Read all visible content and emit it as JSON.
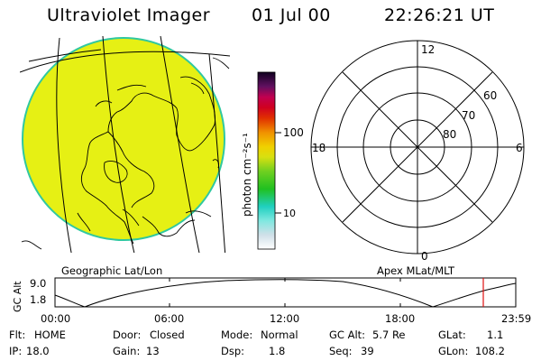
{
  "header": {
    "title": "Ultraviolet Imager",
    "date": "01 Jul 00",
    "time": "22:26:21 UT"
  },
  "colorbar": {
    "unit_label": "photon cm⁻²s⁻¹",
    "tick_100": "100",
    "tick_10": "10"
  },
  "polar": {
    "mlt_top": "12",
    "mlt_left": "18",
    "mlt_right": "6",
    "mlt_bottom": "0",
    "lat_60": "60",
    "lat_70": "70",
    "lat_80": "80"
  },
  "map_labels": {
    "left": "Geographic Lat/Lon",
    "right": "Apex MLat/MLT"
  },
  "altitude_plot": {
    "axis_label": "GC Alt",
    "ymax": "9.0",
    "ymin": "1.8",
    "ticks": [
      "00:00",
      "06:00",
      "12:00",
      "18:00",
      "23:59"
    ],
    "marker_time": "22:26",
    "marker_color": "#e01010"
  },
  "status": {
    "flt_label": "Flt:",
    "flt": "HOME",
    "door_label": "Door:",
    "door": "Closed",
    "mode_label": "Mode:",
    "mode": "Normal",
    "gcalt_label": "GC Alt:",
    "gcalt": "5.7 Re",
    "glat_label": "GLat:",
    "glat": "1.1",
    "ip_label": "IP:",
    "ip": "18.0",
    "gain_label": "Gain:",
    "gain": "13",
    "dsp_label": "Dsp:",
    "dsp": "1.8",
    "seq_label": "Seq:",
    "seq": "39",
    "glon_label": "GLon:",
    "glon": "108.2"
  },
  "colors": {
    "disk_fill": "#e6f014",
    "disk_rim": "#30c8a0"
  }
}
